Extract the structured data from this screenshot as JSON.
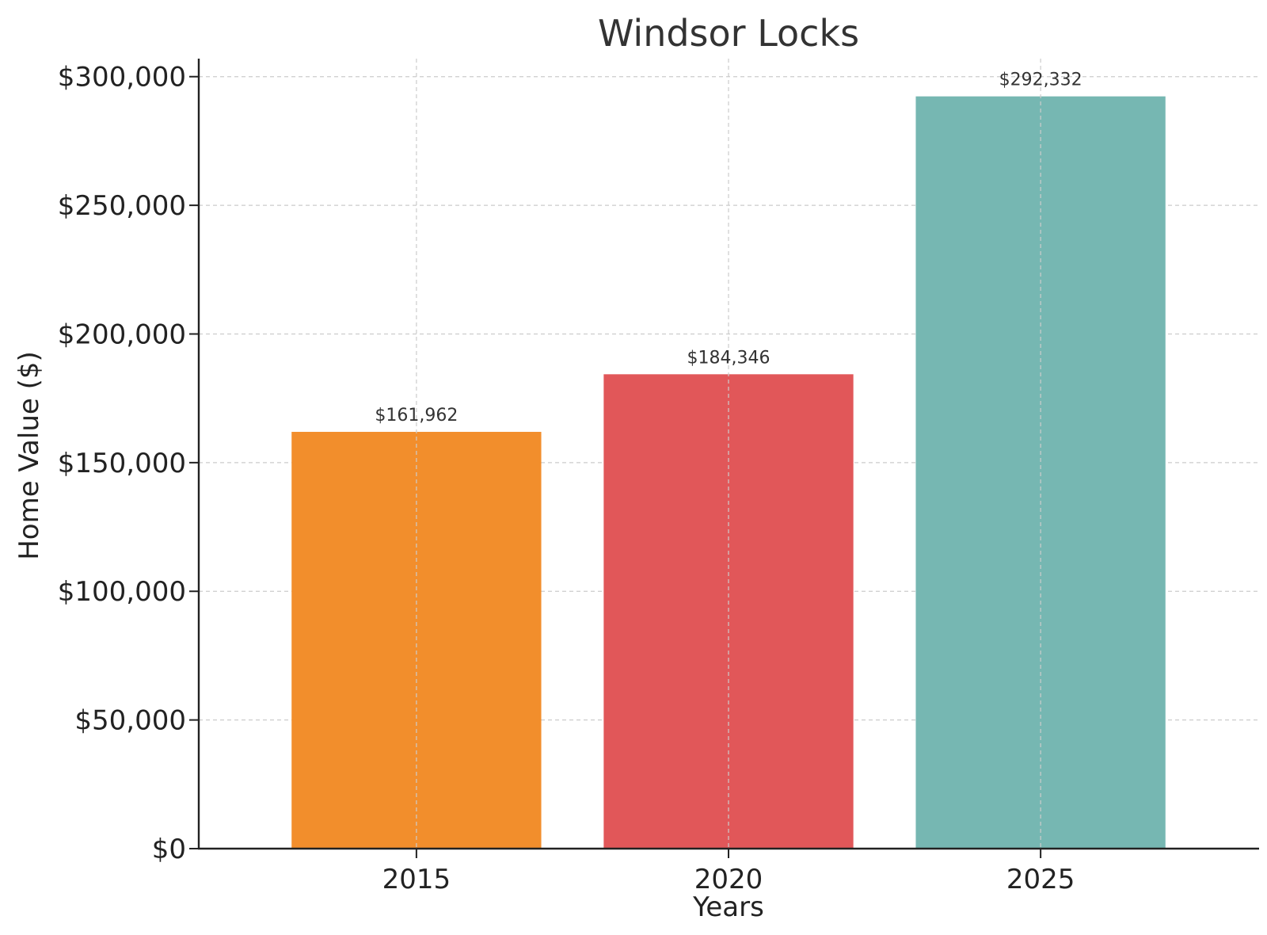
{
  "chart_data": {
    "type": "bar",
    "title": "Windsor Locks",
    "xlabel": "Years",
    "ylabel": "Home Value ($)",
    "categories": [
      "2015",
      "2020",
      "2025"
    ],
    "values": [
      161962,
      184346,
      292332
    ],
    "value_labels": [
      "$161,962",
      "$184,346",
      "$292,332"
    ],
    "colors": [
      "#F28E2C",
      "#E15759",
      "#76B7B2"
    ],
    "ylim": [
      0,
      307000
    ],
    "y_ticks": [
      0,
      50000,
      100000,
      150000,
      200000,
      250000,
      300000
    ],
    "y_tick_labels": [
      "$0",
      "$50,000",
      "$100,000",
      "$150,000",
      "$200,000",
      "$250,000",
      "$300,000"
    ],
    "grid": true
  }
}
